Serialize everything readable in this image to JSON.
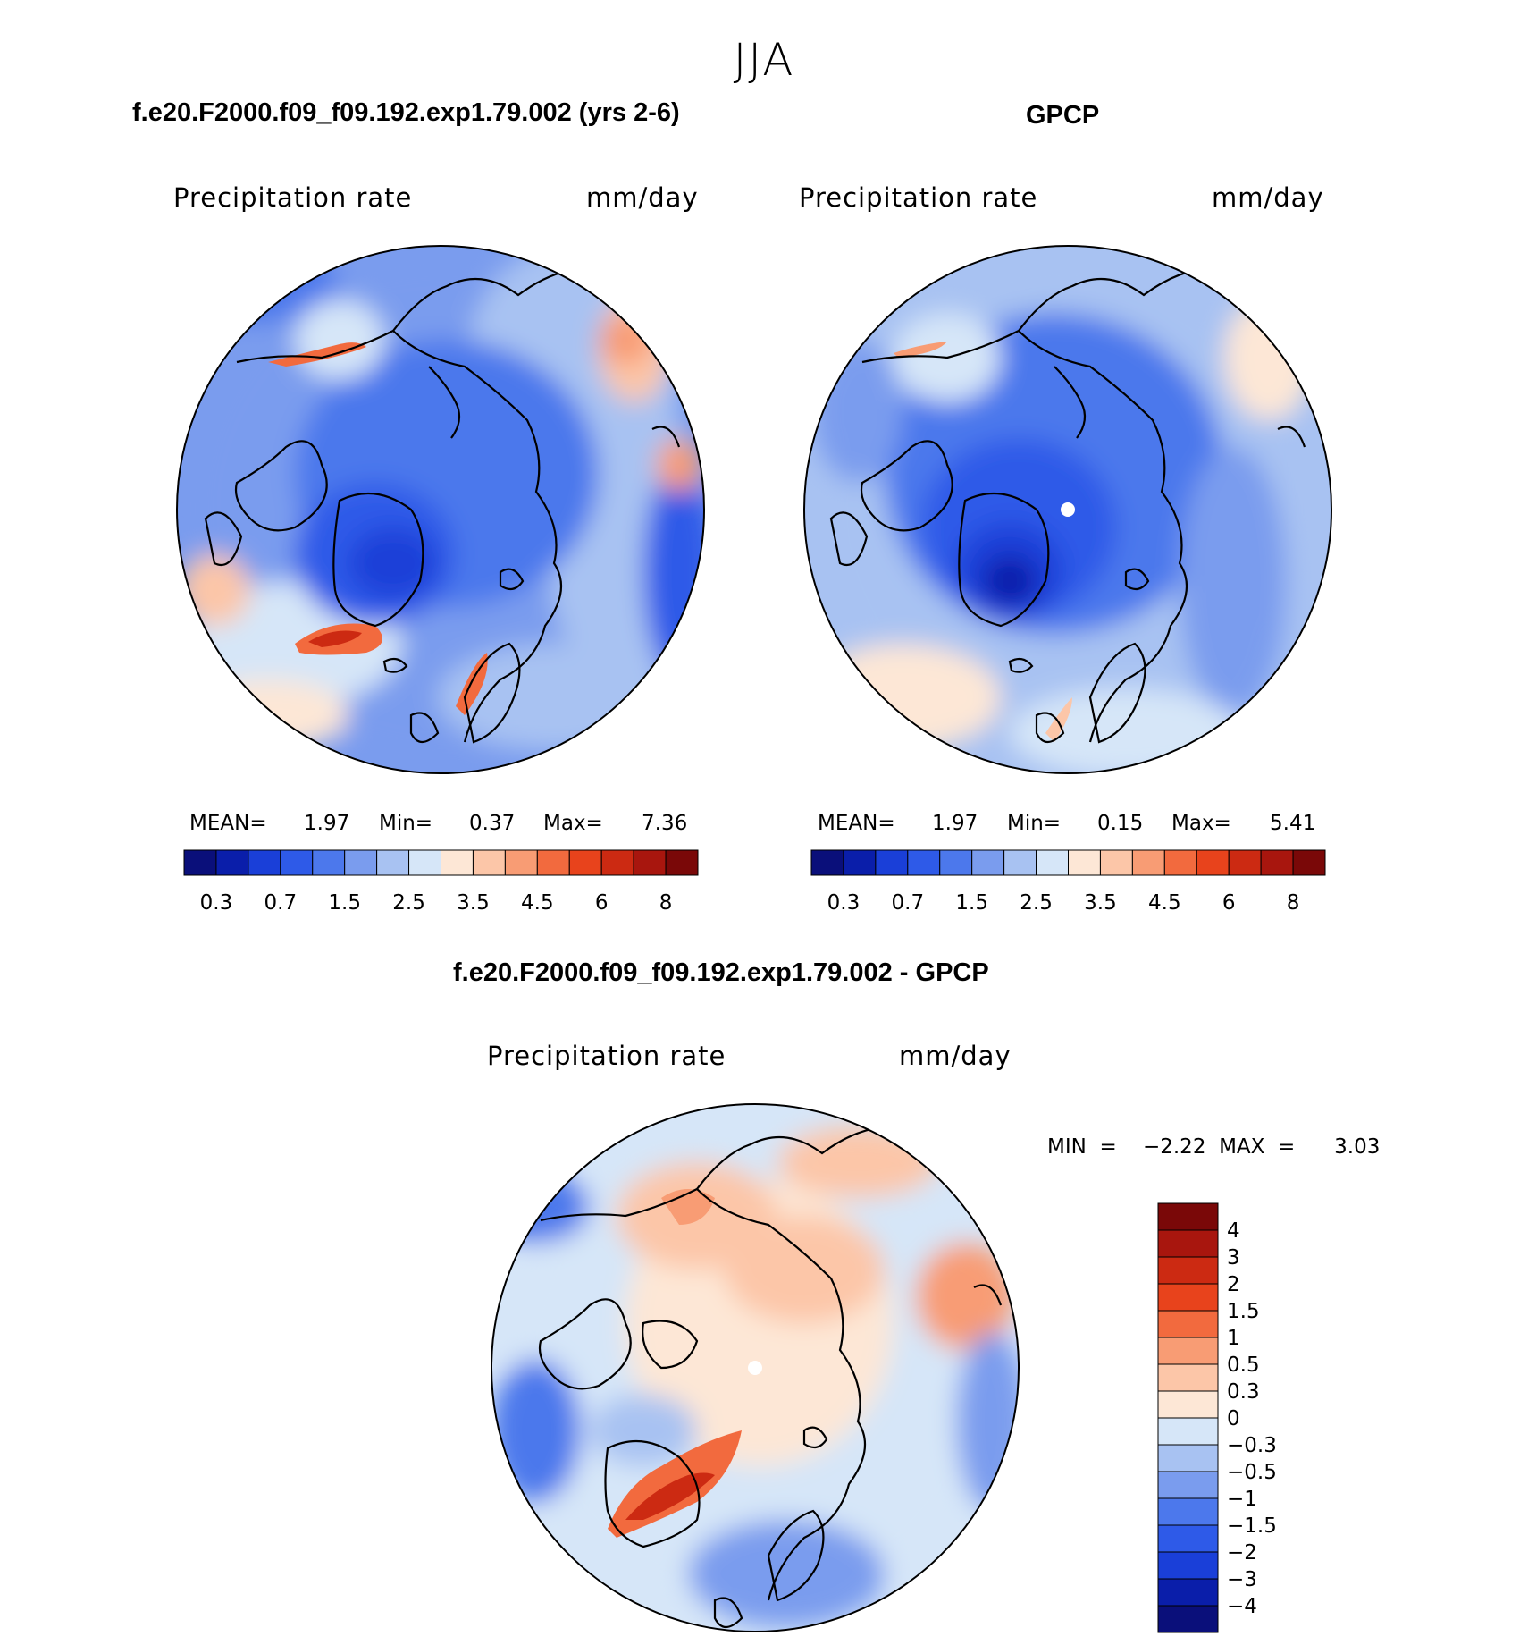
{
  "season": "JJA",
  "colors": {
    "abs_scale": [
      "#0a0f7a",
      "#0a1eaa",
      "#1a3fd8",
      "#2e5ae8",
      "#4c78ec",
      "#7a9cee",
      "#a8c2f2",
      "#d6e6f8",
      "#fde7d6",
      "#fcc6a8",
      "#f89c74",
      "#f26a3e",
      "#e8431c",
      "#cc2a12",
      "#a8160e",
      "#7a0808"
    ],
    "diff_scale": [
      "#7a0808",
      "#a8160e",
      "#cc2a12",
      "#e8431c",
      "#f26a3e",
      "#f89c74",
      "#fcc6a8",
      "#fde7d6",
      "#d6e6f8",
      "#a8c2f2",
      "#7a9cee",
      "#4c78ec",
      "#2e5ae8",
      "#1a3fd8",
      "#0a1eaa",
      "#0a0f7a"
    ]
  },
  "panels": [
    {
      "title": "f.e20.F2000.f09_f09.192.exp1.79.002 (yrs 2-6)",
      "variable": "Precipitation  rate",
      "units": "mm/day",
      "stats": {
        "mean_label": "MEAN=",
        "mean": "1.97",
        "min_label": "Min=",
        "min": "0.37",
        "max_label": "Max=",
        "max": "7.36"
      },
      "ticks": [
        "0.3",
        "0.7",
        "1.5",
        "2.5",
        "3.5",
        "4.5",
        "6",
        "8"
      ]
    },
    {
      "title": "GPCP",
      "variable": "Precipitation  rate",
      "units": "mm/day",
      "stats": {
        "mean_label": "MEAN=",
        "mean": "1.97",
        "min_label": "Min=",
        "min": "0.15",
        "max_label": "Max=",
        "max": "5.41"
      },
      "ticks": [
        "0.3",
        "0.7",
        "1.5",
        "2.5",
        "3.5",
        "4.5",
        "6",
        "8"
      ]
    }
  ],
  "diff_panel": {
    "title": "f.e20.F2000.f09_f09.192.exp1.79.002 - GPCP",
    "variable": "Precipitation  rate",
    "units": "mm/day",
    "minmax": "MIN  =    −2.22  MAX  =      3.03",
    "ticks": [
      "4",
      "3",
      "2",
      "1.5",
      "1",
      "0.5",
      "0.3",
      "0",
      "−0.3",
      "−0.5",
      "−1",
      "−1.5",
      "−2",
      "−3",
      "−4"
    ]
  }
}
